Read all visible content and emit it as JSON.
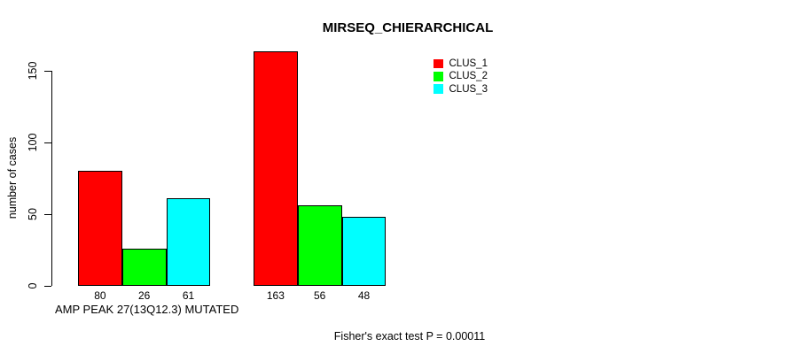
{
  "chart_data": {
    "type": "bar",
    "title": "MIRSEQ_CHIERARCHICAL",
    "xlabel": "AMP PEAK 27(13Q12.3) MUTATED",
    "ylabel": "number of cases",
    "yticks": [
      0,
      50,
      100,
      150
    ],
    "ylim": [
      0,
      170
    ],
    "grid": false,
    "legend_position": "top-right",
    "bar_border_color": "#000000",
    "bar_value_labels_shown": true,
    "series": [
      {
        "name": "CLUS_1",
        "color": "#ff0000",
        "values": [
          80,
          163
        ]
      },
      {
        "name": "CLUS_2",
        "color": "#00ff00",
        "values": [
          26,
          56
        ]
      },
      {
        "name": "CLUS_3",
        "color": "#00ffff",
        "values": [
          61,
          48
        ]
      }
    ],
    "group_bar_labels": [
      [
        80,
        26,
        61
      ],
      [
        163,
        56,
        48
      ]
    ],
    "annotation": "Fisher's exact test P = 0.00011"
  }
}
